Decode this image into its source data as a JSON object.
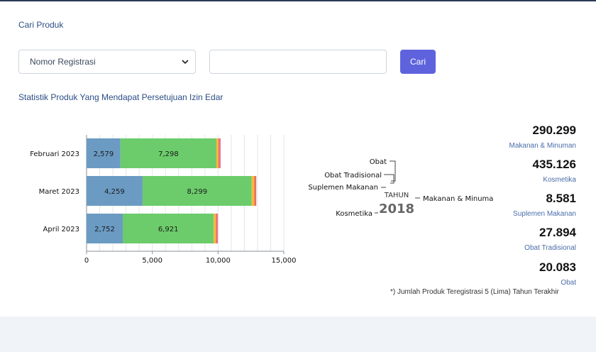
{
  "search": {
    "title": "Cari Produk",
    "select_value": "Nomor Registrasi",
    "input_value": "",
    "button_label": "Cari"
  },
  "stats_title": "Statistik Produk Yang Mendapat Persetujuan Izin Edar",
  "chart_data": [
    {
      "type": "bar",
      "orientation": "horizontal",
      "stacked": true,
      "categories": [
        "Februari 2023",
        "Maret 2023",
        "April 2023"
      ],
      "series": [
        {
          "values": [
            2579,
            4259,
            2752
          ],
          "color": "#6b9bc3"
        },
        {
          "values": [
            7298,
            8299,
            6921
          ],
          "color": "#6ccc6b"
        },
        {
          "values": [
            150,
            200,
            170
          ],
          "color": "#f6b73c"
        },
        {
          "values": [
            100,
            110,
            90
          ],
          "color": "#e8704c"
        },
        {
          "values": [
            70,
            40,
            60
          ],
          "color": "#ee6bb1"
        }
      ],
      "xlim": [
        0,
        15000
      ],
      "xticks": [
        "0",
        "5,000",
        "10,000",
        "15,000"
      ],
      "grid": true
    },
    {
      "type": "pie",
      "center_title": "TAHUN",
      "center_value": "2018",
      "labels": [
        "Obat",
        "Obat Tradisional",
        "Suplemen Makanan",
        "Kosmetika",
        "Makanan & Minuma"
      ]
    }
  ],
  "stats": [
    {
      "value": "290.299",
      "label": "Makanan & Minuman"
    },
    {
      "value": "435.126",
      "label": "Kosmetika"
    },
    {
      "value": "8.581",
      "label": "Suplemen Makanan"
    },
    {
      "value": "27.894",
      "label": "Obat Tradisional"
    },
    {
      "value": "20.083",
      "label": "Obat"
    }
  ],
  "footnote": "*) Jumlah Produk Teregistrasi 5 (Lima) Tahun Terakhir"
}
